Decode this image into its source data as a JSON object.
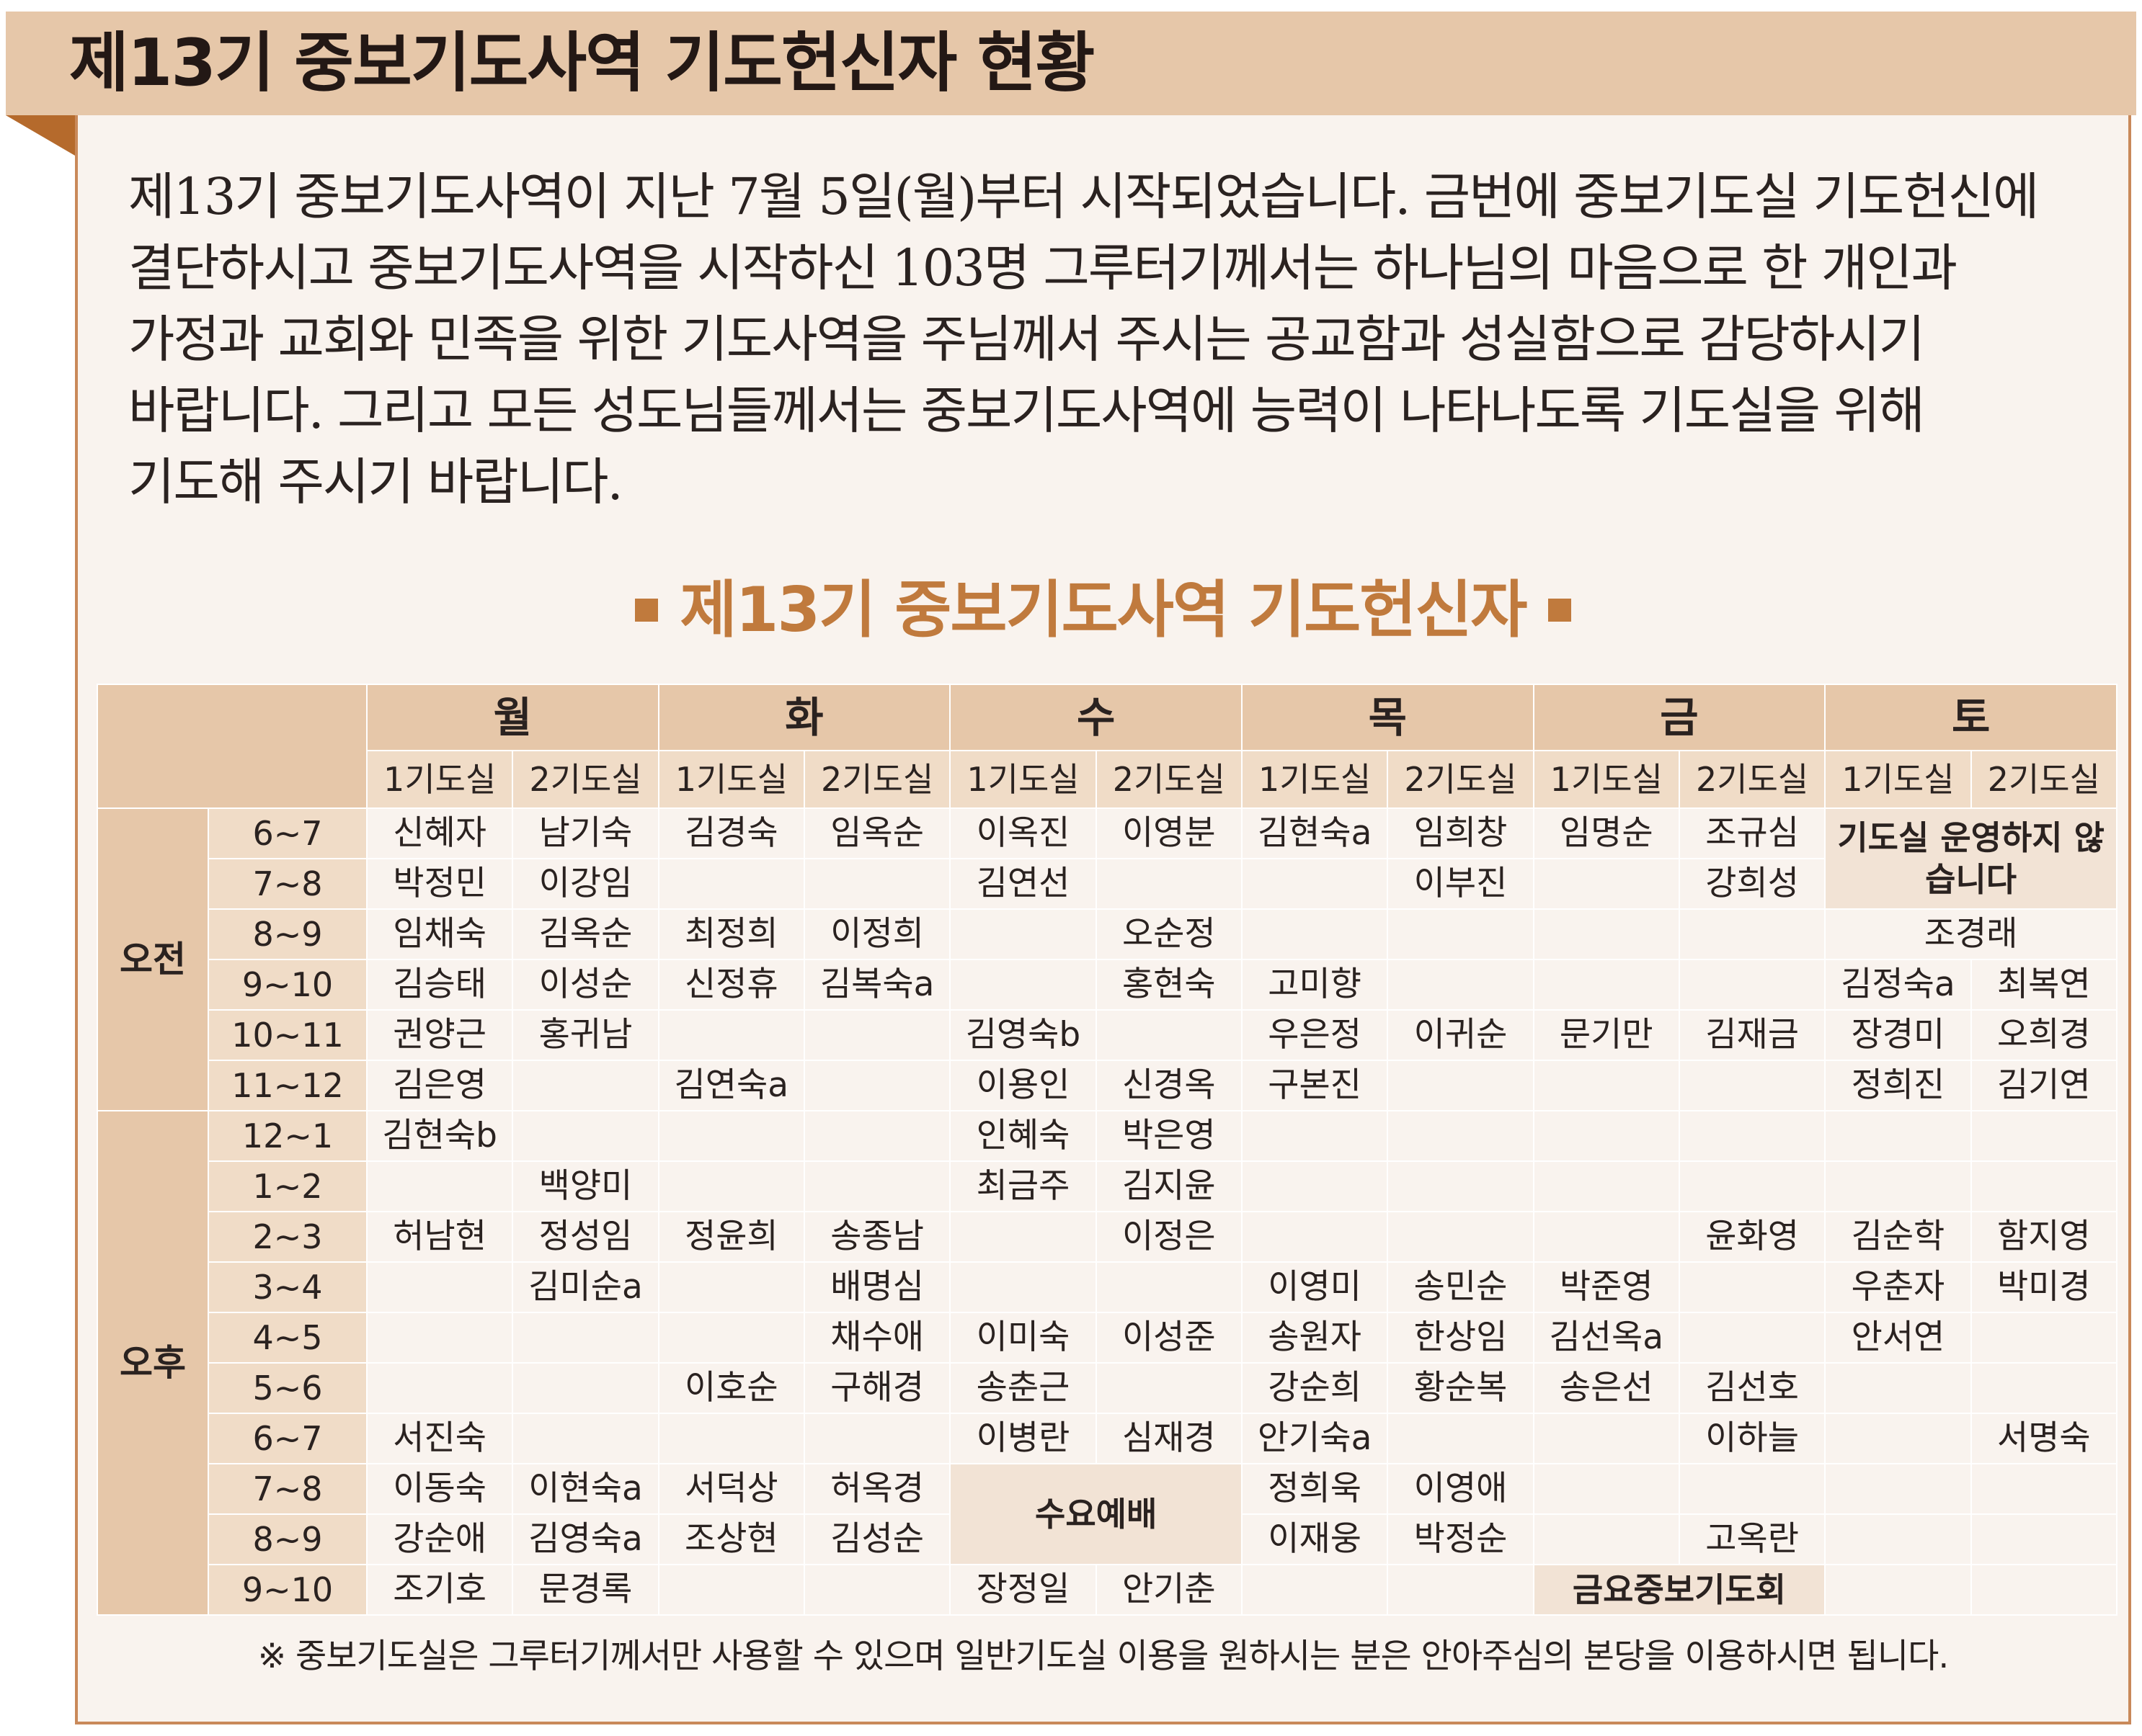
{
  "title": "제13기 중보기도사역 기도헌신자 현황",
  "intro_lines": [
    "제13기 중보기도사역이 지난 7월 5일(월)부터 시작되었습니다. 금번에 중보기도실 기도헌신에",
    "결단하시고 중보기도사역을 시작하신 103명 그루터기께서는 하나님의 마음으로 한 개인과",
    "가정과 교회와 민족을 위한 기도사역을 주님께서 주시는 공교함과 성실함으로 감당하시기",
    "바랍니다. 그리고 모든 성도님들께서는 중보기도사역에 능력이 나타나도록 기도실을 위해",
    "기도해 주시기 바랍니다."
  ],
  "sub_heading": "제13기 중보기도사역 기도헌신자",
  "colors": {
    "banner": "#e6c7a9",
    "accent": "#c07a3d",
    "border": "#c9895a",
    "card": "#f9f3ee"
  },
  "table": {
    "days": [
      "월",
      "화",
      "수",
      "목",
      "금",
      "토"
    ],
    "room_labels": [
      "1기도실",
      "2기도실"
    ],
    "periods": [
      "오전",
      "오후"
    ],
    "times_am": [
      "6~7",
      "7~8",
      "8~9",
      "9~10",
      "10~11",
      "11~12"
    ],
    "times_pm": [
      "12~1",
      "1~2",
      "2~3",
      "3~4",
      "4~5",
      "5~6",
      "6~7",
      "7~8",
      "8~9",
      "9~10"
    ],
    "special": {
      "sat_closed": "기도실 운영하지 않습니다",
      "sat_8_9": "조경래",
      "wed_service": "수요예배",
      "fri_meeting": "금요중보기도회"
    },
    "am": [
      [
        "신혜자",
        "남기숙",
        "김경숙",
        "임옥순",
        "이옥진",
        "이영분",
        "김현숙a",
        "임희창",
        "임명순",
        "조규심"
      ],
      [
        "박정민",
        "이강임",
        "",
        "",
        "김연선",
        "",
        "",
        "이부진",
        "",
        "강희성"
      ],
      [
        "임채숙",
        "김옥순",
        "최정희",
        "이정희",
        "",
        "오순정",
        "",
        "",
        "",
        "",
        "",
        ""
      ],
      [
        "김승태",
        "이성순",
        "신정휴",
        "김복숙a",
        "",
        "홍현숙",
        "고미향",
        "",
        "",
        "",
        "김정숙a",
        "최복연"
      ],
      [
        "권양근",
        "홍귀남",
        "",
        "",
        "김영숙b",
        "",
        "우은정",
        "이귀순",
        "문기만",
        "김재금",
        "장경미",
        "오희경"
      ],
      [
        "김은영",
        "",
        "김연숙a",
        "",
        "이용인",
        "신경옥",
        "구본진",
        "",
        "",
        "",
        "정희진",
        "김기연"
      ]
    ],
    "pm": [
      [
        "김현숙b",
        "",
        "",
        "",
        "인혜숙",
        "박은영",
        "",
        "",
        "",
        "",
        "",
        ""
      ],
      [
        "",
        "백양미",
        "",
        "",
        "최금주",
        "김지윤",
        "",
        "",
        "",
        "",
        "",
        ""
      ],
      [
        "허남현",
        "정성임",
        "정윤희",
        "송종남",
        "",
        "이정은",
        "",
        "",
        "",
        "윤화영",
        "김순학",
        "함지영"
      ],
      [
        "",
        "김미순a",
        "",
        "배명심",
        "",
        "",
        "이영미",
        "송민순",
        "박준영",
        "",
        "우춘자",
        "박미경"
      ],
      [
        "",
        "",
        "",
        "채수애",
        "이미숙",
        "이성준",
        "송원자",
        "한상임",
        "김선옥a",
        "",
        "안서연",
        ""
      ],
      [
        "",
        "",
        "이호순",
        "구해경",
        "송춘근",
        "",
        "강순희",
        "황순복",
        "송은선",
        "김선호",
        "",
        ""
      ],
      [
        "서진숙",
        "",
        "",
        "",
        "이병란",
        "심재경",
        "안기숙a",
        "",
        "",
        "이하늘",
        "",
        "서명숙"
      ],
      [
        "이동숙",
        "이현숙a",
        "서덕상",
        "허옥경",
        "",
        "",
        "정희욱",
        "이영애",
        "",
        "",
        "",
        ""
      ],
      [
        "강순애",
        "김영숙a",
        "조상현",
        "김성순",
        "",
        "",
        "이재웅",
        "박정순",
        "",
        "고옥란",
        "",
        ""
      ],
      [
        "조기호",
        "문경록",
        "",
        "",
        "장정일",
        "안기춘",
        "",
        "",
        "",
        "",
        "",
        ""
      ]
    ]
  },
  "footnote": "※ 중보기도실은 그루터기께서만 사용할 수 있으며 일반기도실 이용을 원하시는 분은 안아주심의 본당을 이용하시면 됩니다."
}
